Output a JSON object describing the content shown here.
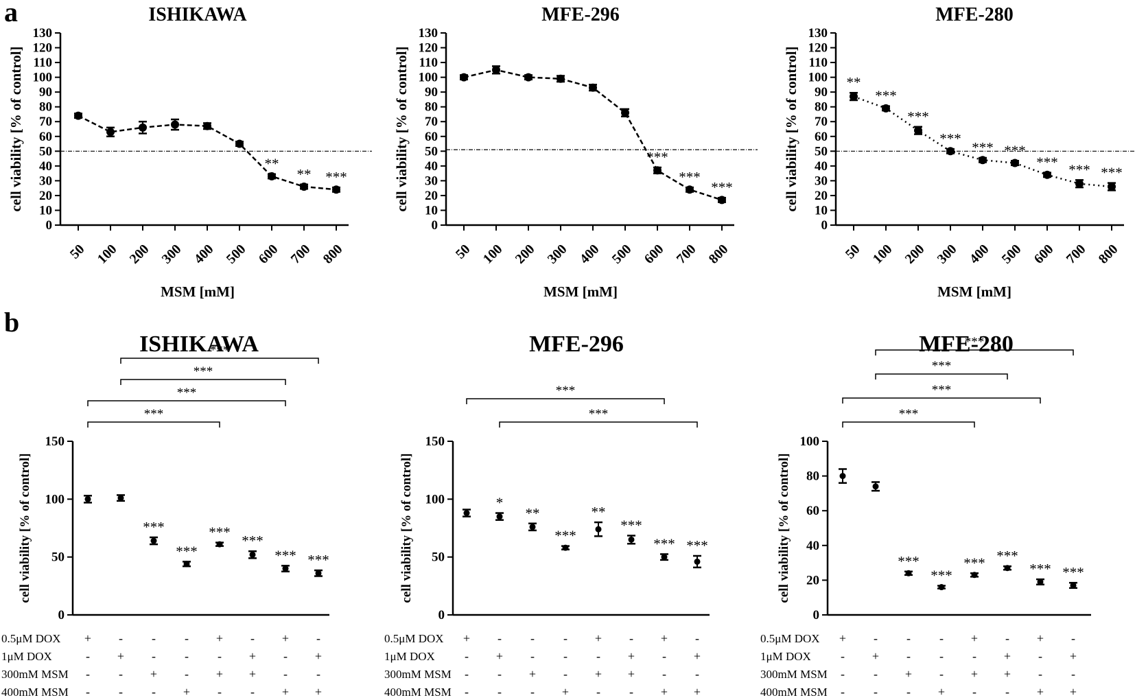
{
  "panel_labels": [
    "a",
    "b"
  ],
  "chart_data": [
    {
      "type": "line",
      "panel": "a",
      "title": "ISHIKAWA",
      "xlabel": "MSM [mM]",
      "ylabel": "cell viability [% of control]",
      "categories": [
        "50",
        "100",
        "200",
        "300",
        "400",
        "500",
        "600",
        "700",
        "800"
      ],
      "values": [
        74,
        63,
        66,
        68,
        67,
        55,
        33,
        26,
        24
      ],
      "errors": [
        1.5,
        3,
        4,
        3.5,
        2,
        1.5,
        1.5,
        1.5,
        1.5
      ],
      "significance": [
        "",
        "",
        "",
        "",
        "",
        "",
        "**",
        "**",
        "***"
      ],
      "reference_line": 50,
      "ylim": [
        0,
        130
      ],
      "yticks": [
        0,
        10,
        20,
        30,
        40,
        50,
        60,
        70,
        80,
        90,
        100,
        110,
        120,
        130
      ],
      "line_style": "dashed"
    },
    {
      "type": "line",
      "panel": "a",
      "title": "MFE-296",
      "xlabel": "MSM [mM]",
      "ylabel": "cell viability [% of control]",
      "categories": [
        "50",
        "100",
        "200",
        "300",
        "400",
        "500",
        "600",
        "700",
        "800"
      ],
      "values": [
        100,
        105,
        100,
        99,
        93,
        76,
        37,
        24,
        17
      ],
      "errors": [
        1.5,
        2.5,
        1.5,
        2,
        2,
        2.5,
        2,
        1.5,
        1.5
      ],
      "significance": [
        "",
        "",
        "",
        "",
        "",
        "",
        "***",
        "***",
        "***"
      ],
      "reference_line": 51,
      "ylim": [
        0,
        130
      ],
      "yticks": [
        0,
        10,
        20,
        30,
        40,
        50,
        60,
        70,
        80,
        90,
        100,
        110,
        120,
        130
      ],
      "line_style": "dashed"
    },
    {
      "type": "line",
      "panel": "a",
      "title": "MFE-280",
      "xlabel": "MSM [mM]",
      "ylabel": "cell viability [% of control]",
      "categories": [
        "50",
        "100",
        "200",
        "300",
        "400",
        "500",
        "600",
        "700",
        "800"
      ],
      "values": [
        87,
        79,
        64,
        50,
        44,
        42,
        34,
        28,
        26
      ],
      "errors": [
        2.5,
        1.5,
        2.5,
        1.5,
        1.5,
        1.5,
        1.5,
        2.5,
        2.5
      ],
      "significance": [
        "**",
        "***",
        "***",
        "***",
        "***",
        "***",
        "***",
        "***",
        "***"
      ],
      "reference_line": 50,
      "ylim": [
        0,
        130
      ],
      "yticks": [
        0,
        10,
        20,
        30,
        40,
        50,
        60,
        70,
        80,
        90,
        100,
        110,
        120,
        130
      ],
      "line_style": "dotted"
    },
    {
      "type": "scatter",
      "panel": "b",
      "title": "ISHIKAWA",
      "ylabel": "cell viability [% of control]",
      "ylim": [
        0,
        150
      ],
      "yticks": [
        0,
        50,
        100,
        150
      ],
      "values": [
        100,
        101,
        64,
        44,
        61,
        52,
        40,
        36
      ],
      "errors": [
        3,
        2.5,
        3,
        2,
        1.5,
        3,
        2.5,
        2.5
      ],
      "significance": [
        "",
        "",
        "***",
        "***",
        "***",
        "***",
        "***",
        "***"
      ],
      "brackets": [
        {
          "from": 1,
          "to": 7,
          "label": "***"
        },
        {
          "from": 1,
          "to": 6,
          "label": "***"
        },
        {
          "from": 0,
          "to": 6,
          "label": "***"
        },
        {
          "from": 0,
          "to": 4,
          "label": "***"
        }
      ],
      "conditions": [
        {
          "label": "0.5μM DOX",
          "signs": [
            "+",
            "-",
            "-",
            "-",
            "+",
            "-",
            "+",
            "-"
          ]
        },
        {
          "label": "1μM DOX",
          "signs": [
            "-",
            "+",
            "-",
            "-",
            "-",
            "+",
            "-",
            "+"
          ]
        },
        {
          "label": "300mM MSM",
          "signs": [
            "-",
            "-",
            "+",
            "-",
            "+",
            "+",
            "-",
            "-"
          ]
        },
        {
          "label": "400mM MSM",
          "signs": [
            "-",
            "-",
            "-",
            "+",
            "-",
            "-",
            "+",
            "+"
          ]
        }
      ]
    },
    {
      "type": "scatter",
      "panel": "b",
      "title": "MFE-296",
      "ylabel": "cell viability [% of control]",
      "ylim": [
        0,
        150
      ],
      "yticks": [
        0,
        50,
        100,
        150
      ],
      "values": [
        88,
        85,
        76,
        58,
        74,
        65,
        50,
        46
      ],
      "errors": [
        3,
        3,
        3,
        1.5,
        6,
        3.5,
        2.5,
        5
      ],
      "significance": [
        "",
        "*",
        "**",
        "***",
        "**",
        "***",
        "***",
        "***"
      ],
      "brackets": [
        {
          "from": 0,
          "to": 6,
          "label": "***"
        },
        {
          "from": 1,
          "to": 7,
          "label": "***"
        }
      ],
      "conditions": [
        {
          "label": "0.5μM DOX",
          "signs": [
            "+",
            "-",
            "-",
            "-",
            "+",
            "-",
            "+",
            "-"
          ]
        },
        {
          "label": "1μM DOX",
          "signs": [
            "-",
            "+",
            "-",
            "-",
            "-",
            "+",
            "-",
            "+"
          ]
        },
        {
          "label": "300mM MSM",
          "signs": [
            "-",
            "-",
            "+",
            "-",
            "+",
            "+",
            "-",
            "-"
          ]
        },
        {
          "label": "400mM MSM",
          "signs": [
            "-",
            "-",
            "-",
            "+",
            "-",
            "-",
            "+",
            "+"
          ]
        }
      ]
    },
    {
      "type": "scatter",
      "panel": "b",
      "title": "MFE-280",
      "ylabel": "cell viability [% of control]",
      "ylim": [
        0,
        100
      ],
      "yticks": [
        0,
        20,
        40,
        60,
        80,
        100
      ],
      "values": [
        80,
        74,
        24,
        16,
        23,
        27,
        19,
        17
      ],
      "errors": [
        4,
        2.5,
        1,
        0.8,
        1,
        1,
        1.5,
        1.5
      ],
      "significance": [
        "",
        "",
        "***",
        "***",
        "***",
        "***",
        "***",
        "***"
      ],
      "brackets": [
        {
          "from": 1,
          "to": 7,
          "label": "***"
        },
        {
          "from": 1,
          "to": 5,
          "label": "***"
        },
        {
          "from": 0,
          "to": 6,
          "label": "***"
        },
        {
          "from": 0,
          "to": 4,
          "label": "***"
        }
      ],
      "conditions": [
        {
          "label": "0.5μM DOX",
          "signs": [
            "+",
            "-",
            "-",
            "-",
            "+",
            "-",
            "+",
            "-"
          ]
        },
        {
          "label": "1μM DOX",
          "signs": [
            "-",
            "+",
            "-",
            "-",
            "-",
            "+",
            "-",
            "+"
          ]
        },
        {
          "label": "300mM MSM",
          "signs": [
            "-",
            "-",
            "+",
            "-",
            "+",
            "+",
            "-",
            "-"
          ]
        },
        {
          "label": "400mM MSM",
          "signs": [
            "-",
            "-",
            "-",
            "+",
            "-",
            "-",
            "+",
            "+"
          ]
        }
      ]
    }
  ]
}
